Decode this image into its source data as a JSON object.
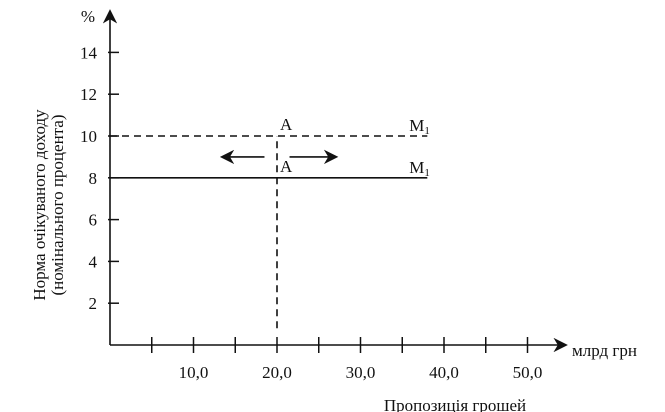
{
  "chart_data": {
    "type": "line",
    "unit_label": "%",
    "xlabel_unit": "млрд грн",
    "xlabel": "Пропозиція грошей",
    "ylabel_lines": [
      "Норма очікуваного доходу",
      "(номінального процента)"
    ],
    "x_ticks": [
      {
        "value": 5,
        "label": ""
      },
      {
        "value": 10,
        "label": "10,0"
      },
      {
        "value": 15,
        "label": ""
      },
      {
        "value": 20,
        "label": "20,0"
      },
      {
        "value": 25,
        "label": ""
      },
      {
        "value": 30,
        "label": "30,0"
      },
      {
        "value": 35,
        "label": ""
      },
      {
        "value": 40,
        "label": "40,0"
      },
      {
        "value": 45,
        "label": ""
      },
      {
        "value": 50,
        "label": "50,0"
      }
    ],
    "y_ticks": [
      {
        "value": 2,
        "label": "2"
      },
      {
        "value": 4,
        "label": "4"
      },
      {
        "value": 6,
        "label": "6"
      },
      {
        "value": 8,
        "label": "8"
      },
      {
        "value": 10,
        "label": "10"
      },
      {
        "value": 12,
        "label": "12"
      },
      {
        "value": 14,
        "label": "14"
      }
    ],
    "xlim": [
      0,
      53
    ],
    "ylim": [
      0,
      16
    ],
    "grid": false,
    "lines": [
      {
        "style": "dashed",
        "from": [
          0,
          10
        ],
        "to": [
          38,
          10
        ],
        "label": "M",
        "subscript": "1"
      },
      {
        "style": "solid",
        "from": [
          0,
          8
        ],
        "to": [
          38,
          8
        ],
        "label": "M",
        "subscript": "1"
      },
      {
        "style": "dashed",
        "from": [
          20,
          0.8
        ],
        "to": [
          20,
          10
        ],
        "label": "",
        "subscript": ""
      }
    ],
    "points": [
      {
        "x": 20,
        "y": 10,
        "label": "A"
      },
      {
        "x": 20,
        "y": 8,
        "label": "A"
      }
    ],
    "arrows": [
      {
        "y": 9,
        "from_x": 18.5,
        "to_x": 13.5
      },
      {
        "y": 9,
        "from_x": 21.5,
        "to_x": 27
      }
    ]
  }
}
